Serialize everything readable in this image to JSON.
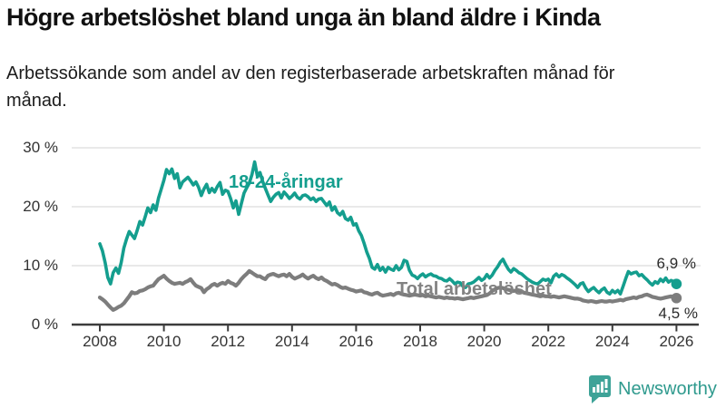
{
  "header": {
    "title": "Högre arbetslöshet bland unga än bland äldre i Kinda",
    "subtitle": "Arbetssökande som andel av den registerbaserade arbetskraften månad för månad."
  },
  "chart_data": {
    "type": "line",
    "title": "Högre arbetslöshet bland unga än bland äldre i Kinda",
    "subtitle": "Arbetssökande som andel av den registerbaserade arbetskraften månad för månad.",
    "xlabel": "",
    "ylabel": "",
    "ylim": [
      0,
      30
    ],
    "xlim": [
      2008,
      2026.2
    ],
    "grid": "horizontal",
    "legend_position": "inline-labels",
    "x_start": 2008,
    "x_step_months": 1,
    "y_ticks": [
      {
        "value": 0,
        "label": "0 %"
      },
      {
        "value": 10,
        "label": "10 %"
      },
      {
        "value": 20,
        "label": "20 %"
      },
      {
        "value": 30,
        "label": "30 %"
      }
    ],
    "x_ticks": [
      {
        "value": 2008,
        "label": "2008"
      },
      {
        "value": 2010,
        "label": "2010"
      },
      {
        "value": 2012,
        "label": "2012"
      },
      {
        "value": 2014,
        "label": "2014"
      },
      {
        "value": 2016,
        "label": "2016"
      },
      {
        "value": 2018,
        "label": "2018"
      },
      {
        "value": 2020,
        "label": "2020"
      },
      {
        "value": 2022,
        "label": "2022"
      },
      {
        "value": 2024,
        "label": "2024"
      },
      {
        "value": 2026,
        "label": "2026"
      }
    ],
    "series": [
      {
        "name": "18-24-åringar",
        "color": "#149e8e",
        "end_label": "6,9 %",
        "end_value": 6.9,
        "values": [
          13.7,
          12.5,
          10.5,
          8.0,
          6.9,
          8.8,
          9.6,
          8.7,
          10.5,
          13.0,
          14.5,
          15.8,
          15.2,
          14.6,
          16.0,
          17.5,
          16.9,
          18.3,
          19.8,
          19.0,
          20.3,
          19.4,
          21.5,
          23.0,
          24.5,
          26.3,
          25.6,
          26.4,
          24.8,
          25.6,
          23.2,
          24.2,
          24.6,
          25.0,
          24.4,
          23.7,
          24.2,
          23.3,
          21.9,
          23.0,
          23.8,
          22.4,
          23.1,
          22.5,
          23.4,
          24.1,
          22.1,
          22.8,
          22.6,
          21.4,
          19.8,
          21.0,
          18.7,
          20.5,
          22.3,
          23.2,
          24.0,
          25.5,
          27.6,
          25.2,
          25.8,
          24.3,
          23.1,
          22.0,
          20.9,
          21.6,
          22.1,
          22.4,
          21.5,
          22.5,
          22.0,
          21.4,
          21.8,
          22.3,
          21.6,
          21.3,
          21.9,
          22.0,
          21.7,
          21.2,
          21.5,
          20.9,
          21.3,
          21.4,
          20.8,
          20.2,
          20.8,
          19.4,
          20.0,
          19.0,
          18.6,
          19.2,
          18.0,
          17.7,
          18.2,
          16.9,
          17.1,
          15.9,
          15.1,
          13.8,
          12.3,
          11.2,
          9.7,
          9.4,
          10.2,
          9.2,
          9.7,
          8.9,
          9.7,
          9.4,
          9.2,
          10.0,
          9.3,
          9.7,
          10.9,
          10.7,
          9.2,
          8.4,
          8.2,
          7.8,
          8.3,
          8.6,
          8.1,
          8.4,
          8.6,
          8.3,
          8.2,
          7.9,
          7.8,
          7.5,
          7.4,
          7.8,
          7.4,
          6.9,
          7.2,
          7.1,
          6.5,
          6.3,
          6.9,
          7.0,
          7.2,
          7.6,
          8.0,
          7.5,
          7.8,
          8.5,
          7.9,
          8.4,
          9.2,
          9.8,
          10.6,
          11.1,
          10.2,
          9.4,
          8.9,
          9.5,
          9.2,
          8.8,
          8.6,
          8.2,
          7.8,
          7.5,
          7.2,
          7.0,
          6.9,
          7.3,
          7.7,
          7.5,
          7.7,
          7.1,
          8.2,
          8.6,
          8.1,
          8.5,
          8.3,
          7.9,
          7.6,
          7.2,
          6.8,
          6.3,
          6.9,
          7.1,
          6.2,
          5.6,
          6.0,
          6.3,
          5.8,
          5.4,
          5.9,
          6.2,
          5.5,
          5.2,
          5.8,
          5.4,
          5.8,
          5.2,
          6.5,
          7.8,
          9.0,
          8.6,
          8.8,
          8.9,
          8.3,
          8.5,
          8.0,
          7.6,
          7.1,
          6.7,
          7.3,
          7.0,
          7.7,
          7.3,
          7.9,
          7.2,
          7.5,
          7.3,
          6.9
        ]
      },
      {
        "name": "Total arbetslöshet",
        "color": "#7d7d7d",
        "end_label": "4,5 %",
        "end_value": 4.5,
        "values": [
          4.6,
          4.3,
          3.9,
          3.4,
          2.9,
          2.5,
          2.7,
          3.0,
          3.2,
          3.6,
          4.2,
          4.8,
          5.5,
          5.3,
          5.4,
          5.7,
          5.8,
          6.0,
          6.3,
          6.5,
          6.6,
          7.2,
          7.7,
          8.0,
          8.3,
          7.8,
          7.4,
          7.1,
          6.9,
          7.0,
          7.1,
          6.9,
          7.2,
          7.4,
          7.7,
          7.1,
          6.6,
          6.4,
          6.2,
          5.5,
          6.0,
          6.3,
          6.7,
          6.9,
          6.6,
          6.9,
          7.1,
          6.9,
          7.4,
          7.1,
          6.9,
          6.6,
          7.1,
          7.7,
          8.2,
          8.6,
          9.1,
          8.8,
          8.5,
          8.2,
          8.2,
          7.9,
          7.7,
          8.3,
          8.5,
          8.6,
          8.4,
          8.2,
          8.4,
          8.5,
          8.2,
          8.6,
          8.1,
          7.8,
          8.0,
          8.2,
          8.5,
          8.1,
          7.8,
          8.1,
          8.3,
          7.9,
          7.7,
          8.0,
          7.6,
          7.4,
          7.1,
          6.8,
          6.9,
          6.7,
          6.4,
          6.2,
          6.3,
          6.1,
          5.9,
          5.8,
          5.6,
          5.7,
          5.8,
          5.5,
          5.4,
          5.2,
          5.1,
          5.3,
          5.4,
          5.1,
          4.9,
          5.0,
          5.1,
          5.2,
          5.0,
          5.3,
          5.4,
          5.2,
          5.1,
          5.0,
          4.9,
          5.0,
          5.1,
          5.0,
          4.9,
          5.0,
          4.8,
          4.9,
          4.8,
          4.7,
          4.6,
          4.7,
          4.6,
          4.5,
          4.6,
          4.5,
          4.5,
          4.4,
          4.5,
          4.4,
          4.3,
          4.4,
          4.5,
          4.6,
          4.5,
          4.6,
          4.7,
          4.8,
          4.9,
          5.0,
          5.3,
          5.7,
          6.0,
          6.2,
          6.3,
          6.2,
          6.0,
          5.9,
          5.8,
          5.7,
          5.8,
          5.7,
          5.6,
          5.4,
          5.3,
          5.2,
          5.1,
          5.0,
          4.9,
          4.8,
          4.9,
          4.8,
          4.8,
          4.7,
          4.8,
          4.7,
          4.6,
          4.7,
          4.8,
          4.7,
          4.6,
          4.5,
          4.4,
          4.4,
          4.3,
          4.1,
          4.0,
          3.9,
          4.0,
          3.9,
          3.8,
          3.9,
          4.0,
          3.9,
          3.9,
          4.0,
          3.9,
          4.0,
          4.1,
          4.2,
          4.1,
          4.3,
          4.4,
          4.5,
          4.6,
          4.5,
          4.7,
          4.8,
          5.0,
          5.1,
          4.9,
          4.7,
          4.6,
          4.5,
          4.4,
          4.5,
          4.6,
          4.7,
          4.8,
          4.6,
          4.5
        ]
      }
    ],
    "colors": {
      "grid": "#dcdcdc",
      "axis": "#3c3c3c",
      "tick_label": "#333333"
    }
  },
  "footer": {
    "brand": "Newsworthy",
    "brand_color": "#2f9a8e"
  }
}
